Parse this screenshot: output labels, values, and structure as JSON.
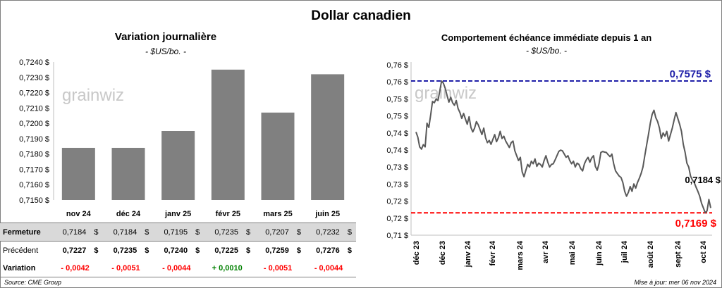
{
  "title": "Dollar canadien",
  "left_chart": {
    "title": "Variation journalière",
    "subtitle": "- $US/bo. -",
    "watermark": "grainwiz"
  },
  "right_chart": {
    "title": "Comportement échéance immédiate depuis 1 an",
    "subtitle": "- $US/bo. -",
    "watermark": "grainwiz",
    "high_label": "0,7575 $",
    "low_label": "0,7169 $",
    "last_label": "0,7184 $"
  },
  "chart_data": [
    {
      "type": "bar",
      "title": "Variation journalière",
      "subtitle": "- $US/bo. -",
      "categories": [
        "nov 24",
        "déc 24",
        "janv 25",
        "févr 25",
        "mars 25",
        "juin 25"
      ],
      "values": [
        0.7184,
        0.7184,
        0.7195,
        0.7235,
        0.7207,
        0.7232
      ],
      "ylim": [
        0.715,
        0.724
      ],
      "yticks": [
        "0,7150 $",
        "0,7160 $",
        "0,7170 $",
        "0,7180 $",
        "0,7190 $",
        "0,7200 $",
        "0,7210 $",
        "0,7220 $",
        "0,7230 $",
        "0,7240 $"
      ],
      "color": "#808080",
      "grid": false
    },
    {
      "type": "line",
      "title": "Comportement échéance immédiate depuis 1 an",
      "subtitle": "- $US/bo. -",
      "x_range": [
        "2023-11-06",
        "2024-11-06"
      ],
      "xticks": [
        "déc 23",
        "déc 23",
        "janv 24",
        "févr 24",
        "mars 24",
        "avr 24",
        "mai 24",
        "juin 24",
        "juil 24",
        "août 24",
        "sept 24",
        "oct 24"
      ],
      "yticks": [
        "0,71 $",
        "0,72 $",
        "0,72 $",
        "0,73 $",
        "0,73 $",
        "0,74 $",
        "0,74 $",
        "0,75 $",
        "0,75 $",
        "0,76 $",
        "0,76 $"
      ],
      "ylim": [
        0.71,
        0.7625
      ],
      "high": 0.7575,
      "low": 0.7169,
      "last": 0.7184,
      "high_color": "#1f1fa8",
      "low_color": "#ff0000",
      "line_color": "#595959",
      "values": [
        0.7418,
        0.7402,
        0.7372,
        0.7365,
        0.7379,
        0.7372,
        0.7445,
        0.7432,
        0.747,
        0.7512,
        0.7508,
        0.752,
        0.7515,
        0.7545,
        0.7575,
        0.7568,
        0.7552,
        0.753,
        0.751,
        0.7525,
        0.7508,
        0.75,
        0.7515,
        0.749,
        0.7478,
        0.746,
        0.7475,
        0.7458,
        0.7442,
        0.7465,
        0.7432,
        0.7418,
        0.743,
        0.745,
        0.744,
        0.7425,
        0.741,
        0.743,
        0.74,
        0.7385,
        0.7392,
        0.738,
        0.7395,
        0.741,
        0.7388,
        0.74,
        0.742,
        0.7398,
        0.7405,
        0.739,
        0.738,
        0.737,
        0.7385,
        0.739,
        0.736,
        0.7345,
        0.733,
        0.734,
        0.7295,
        0.728,
        0.73,
        0.7318,
        0.731,
        0.7328,
        0.732,
        0.7335,
        0.7312,
        0.7322,
        0.7318,
        0.731,
        0.733,
        0.7345,
        0.7325,
        0.731,
        0.7318,
        0.732,
        0.7332,
        0.7345,
        0.7358,
        0.7362,
        0.736,
        0.735,
        0.734,
        0.7345,
        0.733,
        0.732,
        0.7328,
        0.731,
        0.7322,
        0.7318,
        0.7305,
        0.7298,
        0.732,
        0.7332,
        0.734,
        0.7325,
        0.7338,
        0.7345,
        0.7312,
        0.73,
        0.732,
        0.7355,
        0.7358,
        0.7356,
        0.7355,
        0.7348,
        0.7342,
        0.735,
        0.732,
        0.7298,
        0.729,
        0.7282,
        0.7278,
        0.7262,
        0.7235,
        0.722,
        0.7232,
        0.725,
        0.7235,
        0.7258,
        0.7245,
        0.7262,
        0.7275,
        0.729,
        0.731,
        0.7345,
        0.7378,
        0.741,
        0.7445,
        0.7472,
        0.7485,
        0.7462,
        0.745,
        0.743,
        0.7398,
        0.7415,
        0.7405,
        0.742,
        0.739,
        0.741,
        0.743,
        0.7455,
        0.7478,
        0.746,
        0.7442,
        0.742,
        0.738,
        0.7355,
        0.7322,
        0.731,
        0.7282,
        0.727,
        0.7262,
        0.7248,
        0.7235,
        0.722,
        0.7198,
        0.7184,
        0.7169,
        0.7175,
        0.721,
        0.7184
      ]
    }
  ],
  "table": {
    "rows": [
      {
        "label": "Fermeture",
        "values": [
          "0,7184",
          "0,7184",
          "0,7195",
          "0,7235",
          "0,7207",
          "0,7232"
        ],
        "unit": "$",
        "style": "shade"
      },
      {
        "label": "Précédent",
        "values": [
          "0,7227",
          "0,7235",
          "0,7240",
          "0,7225",
          "0,7259",
          "0,7276"
        ],
        "unit": "$",
        "style": "plain"
      },
      {
        "label": "Variation",
        "values": [
          "- 0,0042",
          "- 0,0051",
          "- 0,0044",
          "+ 0,0010",
          "- 0,0051",
          "- 0,0044"
        ],
        "signs": [
          "neg",
          "neg",
          "neg",
          "pos",
          "neg",
          "neg"
        ],
        "style": "var"
      }
    ]
  },
  "footer": {
    "source": "Source: CME Group",
    "updated": "Mise à jour: mer 06 nov 2024"
  }
}
